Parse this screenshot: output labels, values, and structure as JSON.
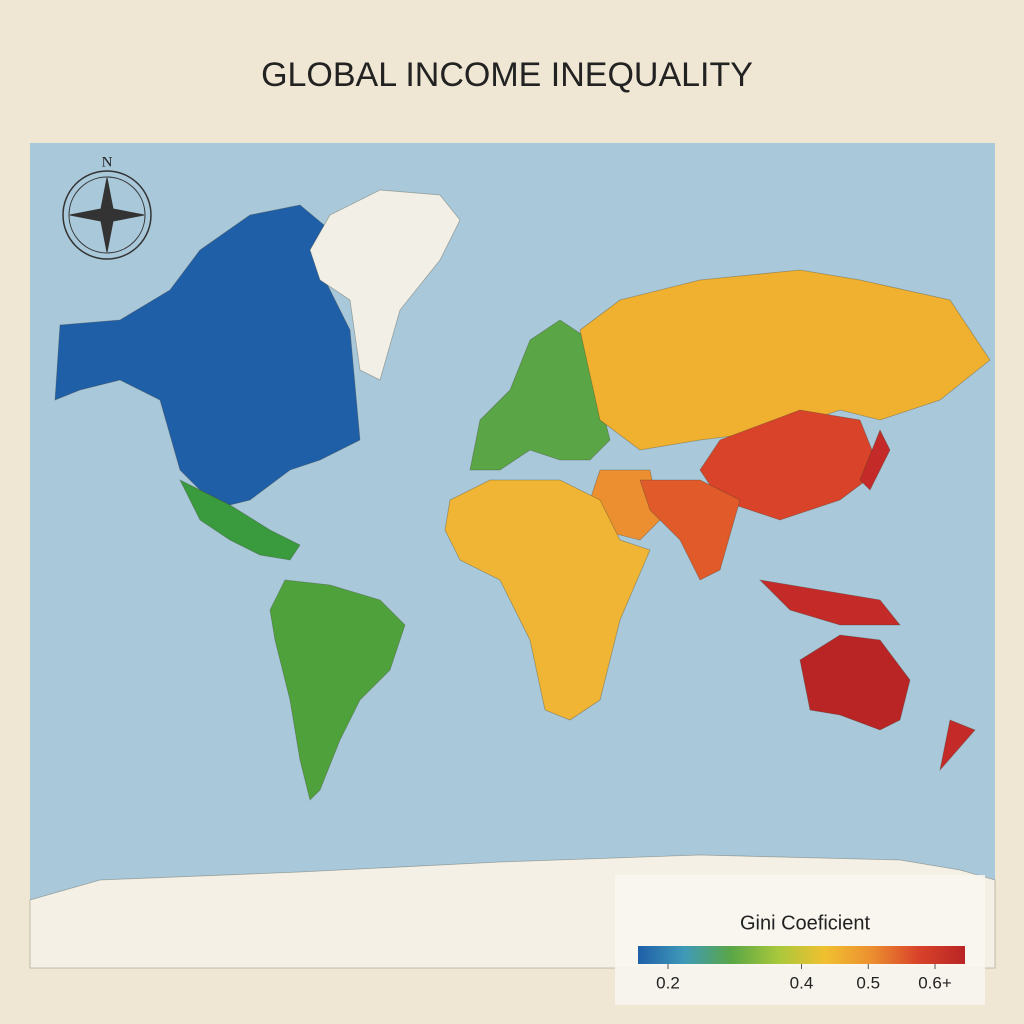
{
  "title": "GLOBAL INCOME INEQUALITY",
  "compass": {
    "label": "N"
  },
  "legend": {
    "title": "Gini Coeficient",
    "colors": [
      "#1f5fa8",
      "#3f9ab8",
      "#5aa646",
      "#a8c83c",
      "#f0c030",
      "#ec8f30",
      "#d9432a",
      "#b92525"
    ],
    "ticks": [
      0.2,
      0.4,
      0.5,
      {
        "value": 0.6,
        "label": "0.6+"
      }
    ]
  }
}
